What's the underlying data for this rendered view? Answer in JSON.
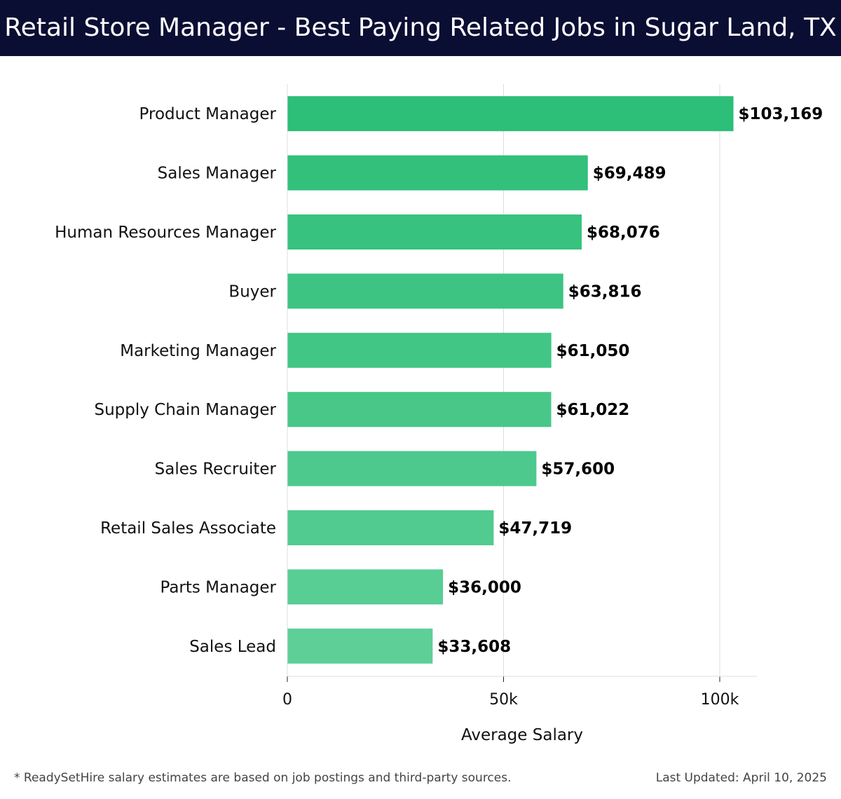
{
  "header": {
    "title": "Retail Store Manager - Best Paying Related Jobs in Sugar Land, TX"
  },
  "footer": {
    "note": "* ReadySetHire salary estimates are based on job postings and third-party sources.",
    "updated": "Last Updated: April 10, 2025"
  },
  "colors": {
    "title_bg": "#0b0e33",
    "bar_top": "#2dbe78",
    "bar_bottom": "#5dcf97",
    "grid": "#dddddd"
  },
  "chart_data": {
    "type": "bar",
    "orientation": "horizontal",
    "title": "Retail Store Manager - Best Paying Related Jobs in Sugar Land, TX",
    "xlabel": "Average Salary",
    "ylabel": "",
    "xlim": [
      0,
      108500
    ],
    "xticks": [
      0,
      50000,
      100000
    ],
    "xtick_labels": [
      "0",
      "50k",
      "100k"
    ],
    "grid": true,
    "categories": [
      "Product Manager",
      "Sales Manager",
      "Human Resources Manager",
      "Buyer",
      "Marketing Manager",
      "Supply Chain Manager",
      "Sales Recruiter",
      "Retail Sales Associate",
      "Parts Manager",
      "Sales Lead"
    ],
    "values": [
      103169,
      69489,
      68076,
      63816,
      61050,
      61022,
      57600,
      47719,
      36000,
      33608
    ],
    "value_labels": [
      "$103,169",
      "$69,489",
      "$68,076",
      "$63,816",
      "$61,050",
      "$61,022",
      "$57,600",
      "$47,719",
      "$36,000",
      "$33,608"
    ]
  }
}
